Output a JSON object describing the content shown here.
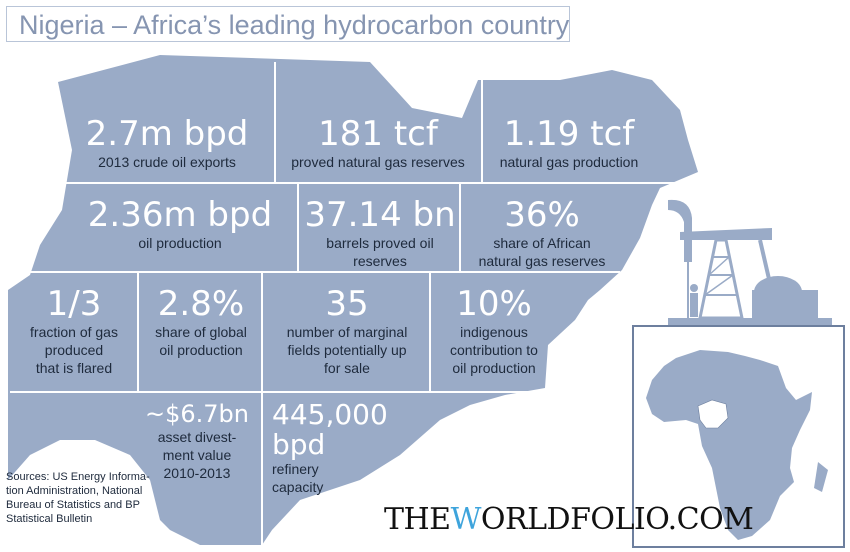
{
  "title": "Nigeria – Africa’s leading hydrocarbon country",
  "colors": {
    "map_fill": "#9aabc7",
    "divider": "#ffffff",
    "text_dark": "#1e2a3c",
    "title_text": "#8695b1",
    "brand_w": "#3ea4dc"
  },
  "stats": [
    {
      "value": "2.7m bpd",
      "label": "2013 crude oil exports"
    },
    {
      "value": "181 tcf",
      "label": "proved natural gas reserves"
    },
    {
      "value": "1.19 tcf",
      "label": "natural gas production"
    },
    {
      "value": "2.36m bpd",
      "label": "oil production"
    },
    {
      "value": "37.14 bn",
      "label_1": "barrels proved oil",
      "label_2": "reserves"
    },
    {
      "value": "36%",
      "label_1": "share of African",
      "label_2": "natural gas reserves"
    },
    {
      "value": "1/3",
      "label_1": "fraction of gas",
      "label_2": "produced",
      "label_3": "that is flared"
    },
    {
      "value": "2.8%",
      "label_1": "share of global",
      "label_2": "oil production"
    },
    {
      "value": "35",
      "label_1": "number of marginal",
      "label_2": "fields potentially up",
      "label_3": "for sale"
    },
    {
      "value": "10%",
      "label_1": "indigenous",
      "label_2": "contribution to",
      "label_3": "oil production"
    },
    {
      "value": "~$6.7bn",
      "label_1": "asset divest-",
      "label_2": "ment value",
      "label_3": "2010-2013"
    },
    {
      "value_1": "445,000",
      "value_2": "bpd",
      "label_1": "refinery",
      "label_2": "capacity"
    }
  ],
  "sources": {
    "line_1": "Sources: US Energy Informa-",
    "line_2": "tion Administration, National",
    "line_3": "Bureau of Statistics and BP",
    "line_4": "Statistical Bulletin"
  },
  "brand": {
    "pre": "THE",
    "w": "W",
    "post": "ORLDFOLIO.COM"
  },
  "icons": [
    "oil-pump-jack-icon",
    "africa-map-icon"
  ]
}
